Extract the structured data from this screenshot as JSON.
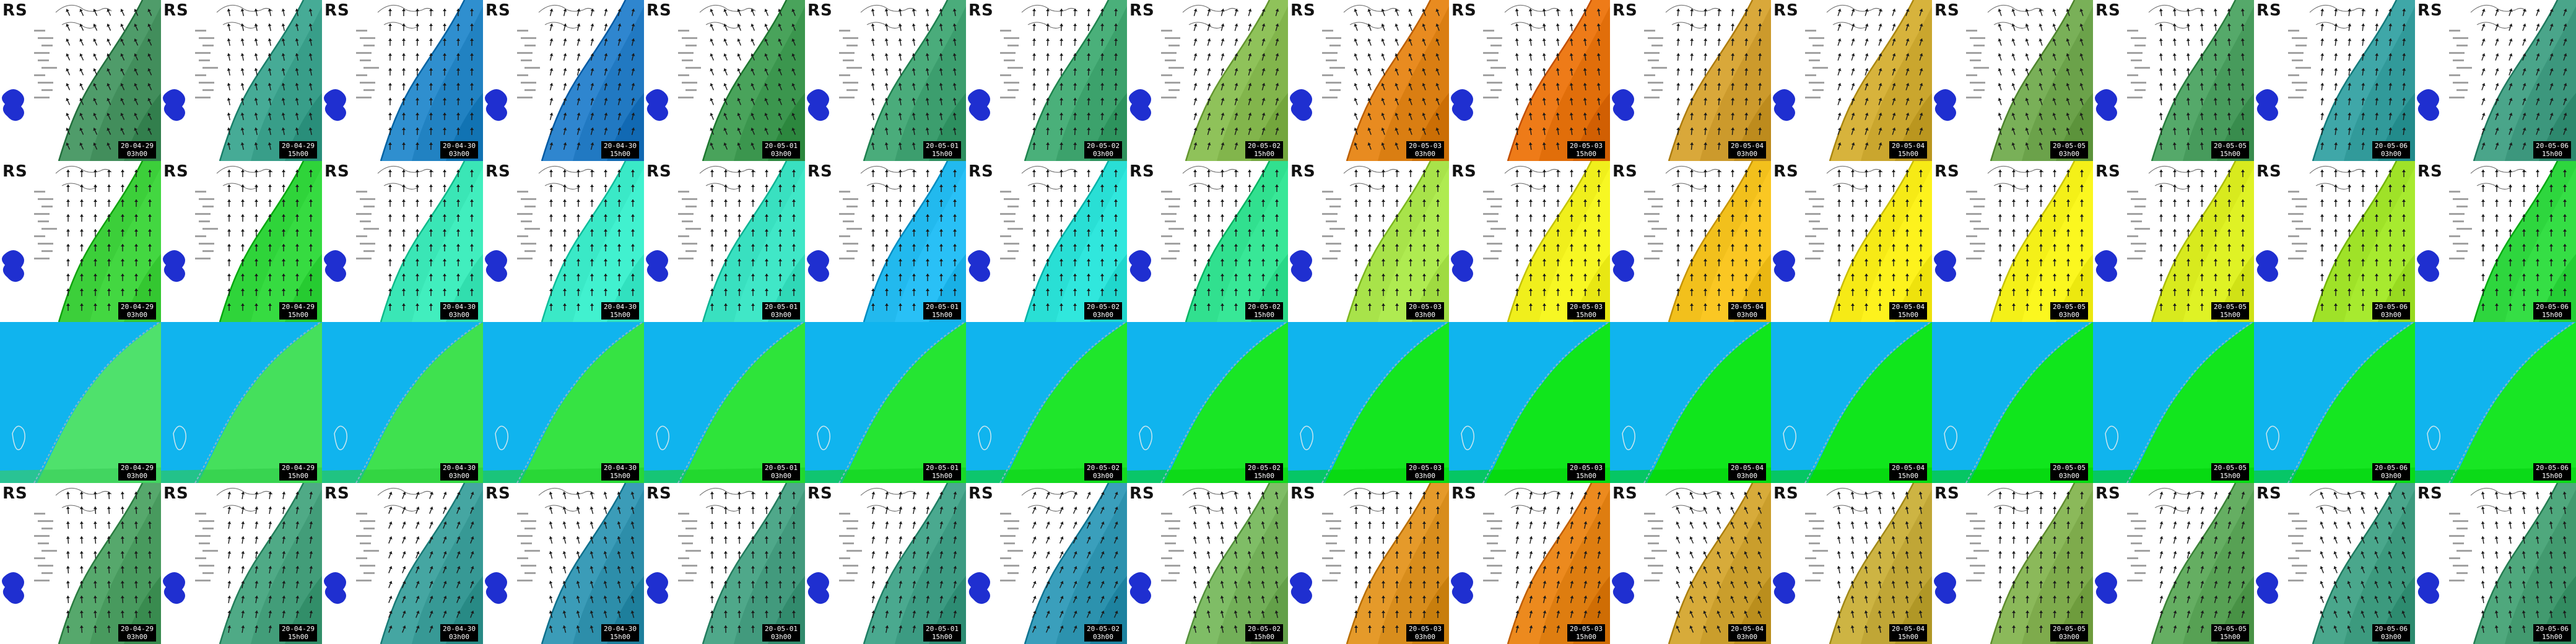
{
  "region_label": "RS",
  "rows": [
    {
      "kind": "wind",
      "tiles": [
        {
          "date": "20-04-29",
          "time": "03h00",
          "field": "#4f9c6a"
        },
        {
          "date": "20-04-29",
          "time": "15h00",
          "field": "#46ab96"
        },
        {
          "date": "20-04-30",
          "time": "03h00",
          "field": "#2f8fcf"
        },
        {
          "date": "20-04-30",
          "time": "15h00",
          "field": "#2f86cf"
        },
        {
          "date": "20-05-01",
          "time": "03h00",
          "field": "#49a35b"
        },
        {
          "date": "20-05-01",
          "time": "15h00",
          "field": "#4aac7b"
        },
        {
          "date": "20-05-02",
          "time": "03h00",
          "field": "#4ab07a"
        },
        {
          "date": "20-05-02",
          "time": "15h00",
          "field": "#8fc25a"
        },
        {
          "date": "20-05-03",
          "time": "03h00",
          "field": "#e88b20"
        },
        {
          "date": "20-05-03",
          "time": "15h00",
          "field": "#ee7b18"
        },
        {
          "date": "20-05-04",
          "time": "03h00",
          "field": "#d9a83a"
        },
        {
          "date": "20-05-04",
          "time": "15h00",
          "field": "#d7b33c"
        },
        {
          "date": "20-05-05",
          "time": "03h00",
          "field": "#79b058"
        },
        {
          "date": "20-05-05",
          "time": "15h00",
          "field": "#55a96a"
        },
        {
          "date": "20-05-06",
          "time": "03h00",
          "field": "#3fa7a8"
        },
        {
          "date": "20-05-06",
          "time": "15h00",
          "field": "#4aa58a"
        }
      ]
    },
    {
      "kind": "wave",
      "tiles": [
        {
          "date": "20-04-29",
          "time": "03h00",
          "field": "#3ccf3a"
        },
        {
          "date": "20-04-29",
          "time": "15h00",
          "field": "#2fd43a"
        },
        {
          "date": "20-04-30",
          "time": "03h00",
          "field": "#3ae6b6"
        },
        {
          "date": "20-04-30",
          "time": "15h00",
          "field": "#3ae9c7"
        },
        {
          "date": "20-05-01",
          "time": "03h00",
          "field": "#39e0c0"
        },
        {
          "date": "20-05-01",
          "time": "15h00",
          "field": "#22b9ee"
        },
        {
          "date": "20-05-02",
          "time": "03h00",
          "field": "#29dfd5"
        },
        {
          "date": "20-05-02",
          "time": "15h00",
          "field": "#31e08f"
        },
        {
          "date": "20-05-03",
          "time": "03h00",
          "field": "#a8e34a"
        },
        {
          "date": "20-05-03",
          "time": "15h00",
          "field": "#f0ef1c"
        },
        {
          "date": "20-05-04",
          "time": "03h00",
          "field": "#f2c01c"
        },
        {
          "date": "20-05-04",
          "time": "15h00",
          "field": "#f6ea16"
        },
        {
          "date": "20-05-05",
          "time": "03h00",
          "field": "#f4f018"
        },
        {
          "date": "20-05-05",
          "time": "15h00",
          "field": "#d8ea1e"
        },
        {
          "date": "20-05-06",
          "time": "03h00",
          "field": "#9fe228"
        },
        {
          "date": "20-05-06",
          "time": "15h00",
          "field": "#2ed63e"
        }
      ]
    },
    {
      "kind": "coastal",
      "tiles": [
        {
          "date": "20-04-29",
          "time": "03h00",
          "field": "#4fe16c"
        },
        {
          "date": "20-04-29",
          "time": "15h00",
          "field": "#45e05c"
        },
        {
          "date": "20-04-30",
          "time": "03h00",
          "field": "#3fe14f"
        },
        {
          "date": "20-04-30",
          "time": "15h00",
          "field": "#36e343"
        },
        {
          "date": "20-05-01",
          "time": "03h00",
          "field": "#2ee43a"
        },
        {
          "date": "20-05-01",
          "time": "15h00",
          "field": "#25e532"
        },
        {
          "date": "20-05-02",
          "time": "03h00",
          "field": "#1fe62b"
        },
        {
          "date": "20-05-02",
          "time": "15h00",
          "field": "#19e625"
        },
        {
          "date": "20-05-03",
          "time": "03h00",
          "field": "#14e620"
        },
        {
          "date": "20-05-03",
          "time": "15h00",
          "field": "#10e61c"
        },
        {
          "date": "20-05-04",
          "time": "03h00",
          "field": "#10e61c"
        },
        {
          "date": "20-05-04",
          "time": "15h00",
          "field": "#10e61c"
        },
        {
          "date": "20-05-05",
          "time": "03h00",
          "field": "#10e61c"
        },
        {
          "date": "20-05-05",
          "time": "15h00",
          "field": "#12e61e"
        },
        {
          "date": "20-05-06",
          "time": "03h00",
          "field": "#15e621"
        },
        {
          "date": "20-05-06",
          "time": "15h00",
          "field": "#18e624"
        }
      ]
    },
    {
      "kind": "wind",
      "tiles": [
        {
          "date": "20-04-29",
          "time": "03h00",
          "field": "#56a86c"
        },
        {
          "date": "20-04-29",
          "time": "15h00",
          "field": "#4faa86"
        },
        {
          "date": "20-04-30",
          "time": "03h00",
          "field": "#45a6a2"
        },
        {
          "date": "20-04-30",
          "time": "15h00",
          "field": "#3b9cb8"
        },
        {
          "date": "20-05-01",
          "time": "03h00",
          "field": "#4fa88a"
        },
        {
          "date": "20-05-01",
          "time": "15h00",
          "field": "#4aa98f"
        },
        {
          "date": "20-05-02",
          "time": "03h00",
          "field": "#3a9fbc"
        },
        {
          "date": "20-05-02",
          "time": "15h00",
          "field": "#7fbd66"
        },
        {
          "date": "20-05-03",
          "time": "03h00",
          "field": "#e59a2a"
        },
        {
          "date": "20-05-03",
          "time": "15h00",
          "field": "#ec8a1e"
        },
        {
          "date": "20-05-04",
          "time": "03h00",
          "field": "#d7ab3a"
        },
        {
          "date": "20-05-04",
          "time": "15h00",
          "field": "#cdb443"
        },
        {
          "date": "20-05-05",
          "time": "03h00",
          "field": "#8bb95a"
        },
        {
          "date": "20-05-05",
          "time": "15h00",
          "field": "#65ae62"
        },
        {
          "date": "20-05-06",
          "time": "03h00",
          "field": "#4aa78c"
        },
        {
          "date": "20-05-06",
          "time": "15h00",
          "field": "#4fa87d"
        }
      ]
    }
  ]
}
